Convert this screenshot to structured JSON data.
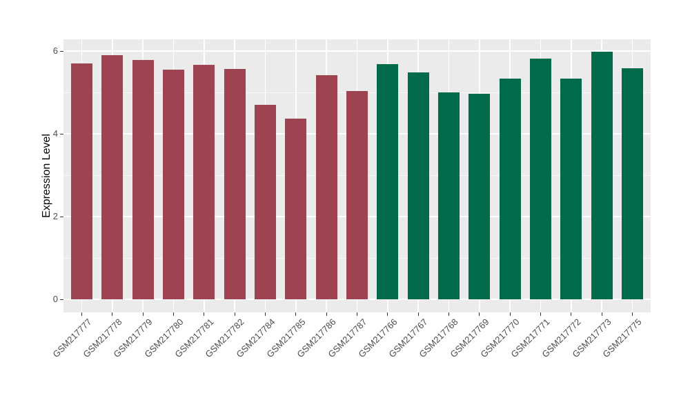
{
  "chart_data": {
    "type": "bar",
    "title": "",
    "xlabel": "",
    "ylabel": "Expression Level",
    "ylim": [
      0,
      6.3
    ],
    "yticks": [
      0,
      2,
      4,
      6
    ],
    "yticks_minor": [
      1,
      3,
      5
    ],
    "grid": "on",
    "legend_position": "none",
    "panel_background": "#EBEBEB",
    "grid_color": "#FFFFFF",
    "tick_label_color": "#4D4D4D",
    "axis_title_color": "#000000",
    "group_colors": [
      "#9E4352",
      "#016A4B"
    ],
    "categories": [
      "GSM217777",
      "GSM217778",
      "GSM217779",
      "GSM217780",
      "GSM217781",
      "GSM217782",
      "GSM217784",
      "GSM217785",
      "GSM217786",
      "GSM217787",
      "GSM217766",
      "GSM217767",
      "GSM217768",
      "GSM217769",
      "GSM217770",
      "GSM217771",
      "GSM217772",
      "GSM217773",
      "GSM217775"
    ],
    "values": [
      5.7,
      5.9,
      5.78,
      5.55,
      5.66,
      5.57,
      4.7,
      4.37,
      5.42,
      5.03,
      5.69,
      5.49,
      5.0,
      4.97,
      5.34,
      5.82,
      5.33,
      5.99,
      5.58
    ],
    "group_index": [
      0,
      0,
      0,
      0,
      0,
      0,
      0,
      0,
      0,
      0,
      1,
      1,
      1,
      1,
      1,
      1,
      1,
      1,
      1
    ]
  }
}
